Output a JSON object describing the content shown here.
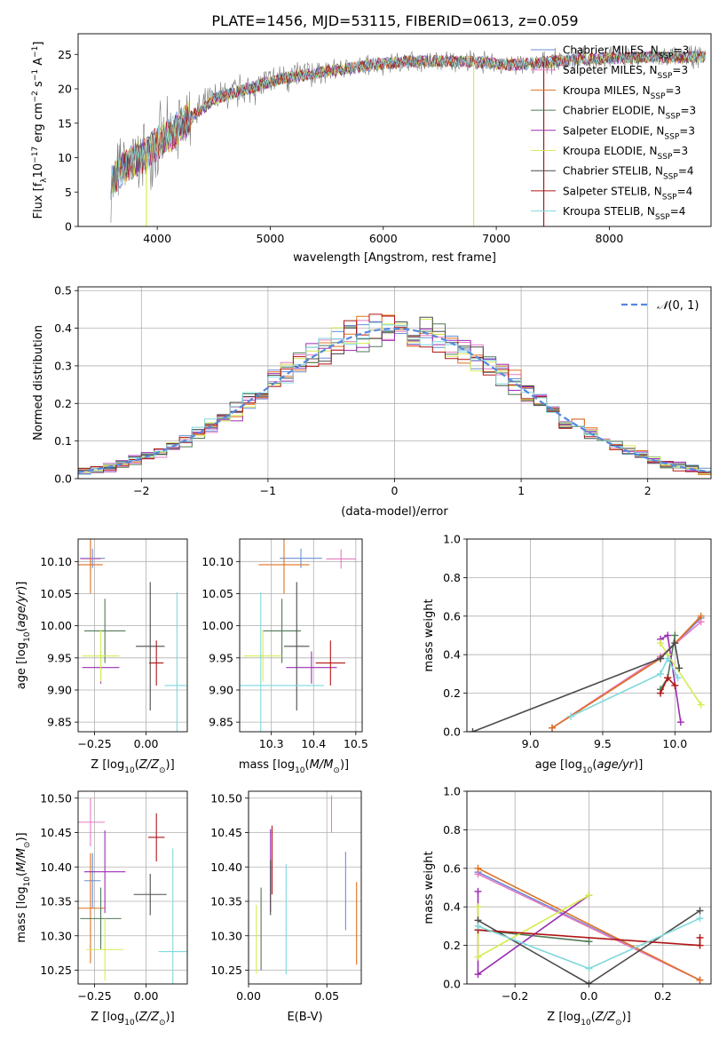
{
  "figure_title": "PLATE=1456, MJD=53115, FIBERID=0613, z=0.059",
  "colors": {
    "Chabrier MILES": "#6a8fd6",
    "Salpeter MILES": "#e87ac4",
    "Kroupa MILES": "#e0701f",
    "Chabrier ELODIE": "#4f7a57",
    "Salpeter ELODIE": "#9b2db3",
    "Kroupa ELODIE": "#d6ec52",
    "Chabrier STELIB": "#4b4b4b",
    "Salpeter STELIB": "#b01515",
    "Kroupa STELIB": "#7fd8dc",
    "data": "#808080",
    "normal": "#5588dd"
  },
  "chart_data": [
    {
      "id": "spectrum",
      "type": "line",
      "xlabel": "wavelength [Angstrom, rest frame]",
      "ylabel": "Flux [f_λ 10^-17 erg cm^-2 s^-1 A^-1]",
      "xlim": [
        3300,
        8900
      ],
      "ylim": [
        0,
        28
      ],
      "xticks": [
        4000,
        5000,
        6000,
        7000,
        8000
      ],
      "yticks": [
        0,
        5,
        10,
        15,
        20,
        25
      ],
      "grid": false,
      "legend_position": "right",
      "legend": [
        {
          "label": "Chabrier MILES, N",
          "sub": "SSP",
          "tail": "=3"
        },
        {
          "label": "Salpeter MILES, N",
          "sub": "SSP",
          "tail": "=3"
        },
        {
          "label": "Kroupa MILES, N",
          "sub": "SSP",
          "tail": "=3"
        },
        {
          "label": "Chabrier ELODIE, N",
          "sub": "SSP",
          "tail": "=3"
        },
        {
          "label": "Salpeter ELODIE, N",
          "sub": "SSP",
          "tail": "=3"
        },
        {
          "label": "Kroupa ELODIE, N",
          "sub": "SSP",
          "tail": "=3"
        },
        {
          "label": "Chabrier STELIB, N",
          "sub": "SSP",
          "tail": "=4"
        },
        {
          "label": "Salpeter STELIB, N",
          "sub": "SSP",
          "tail": "=4"
        },
        {
          "label": "Kroupa STELIB, N",
          "sub": "SSP",
          "tail": "=4"
        }
      ],
      "series": [
        {
          "name": "data",
          "x": [
            3600,
            3700,
            3800,
            3900,
            4000,
            4100,
            4200,
            4300,
            4400,
            4500,
            4700,
            4900,
            5100,
            5300,
            5500,
            5700,
            5900,
            6100,
            6300,
            6500,
            6700,
            6900,
            7100,
            7300,
            7500,
            7700,
            7900,
            8100,
            8300,
            8500,
            8700,
            8850
          ],
          "y": [
            6.5,
            8.5,
            9.5,
            10.5,
            12.0,
            13.0,
            14.5,
            16.0,
            17.0,
            18.5,
            19.5,
            20.5,
            21.5,
            22.0,
            22.5,
            23.0,
            23.5,
            23.8,
            24.0,
            24.0,
            24.0,
            23.8,
            23.5,
            23.6,
            24.0,
            24.2,
            24.4,
            24.5,
            24.6,
            24.6,
            24.6,
            24.6
          ]
        }
      ],
      "spikes": [
        {
          "x": 3905,
          "y": 0
        },
        {
          "x": 6800,
          "y": 0
        },
        {
          "x": 7420,
          "y": 0
        }
      ]
    },
    {
      "id": "residuals",
      "type": "histogram",
      "xlabel": "(data-model)/error",
      "ylabel": "Normed distribution",
      "xlim": [
        -2.5,
        2.5
      ],
      "ylim": [
        0,
        0.51
      ],
      "xticks": [
        -2,
        -1,
        0,
        1,
        2
      ],
      "yticks": [
        0.0,
        0.1,
        0.2,
        0.3,
        0.4,
        0.5
      ],
      "grid": true,
      "legend_position": "top-right",
      "legend": [
        "N(0,1)"
      ],
      "bin_width": 0.1,
      "bin_start": -2.5,
      "normal": {
        "mean": 0,
        "sigma": 1
      }
    },
    {
      "id": "age_vs_Z",
      "type": "errorbar",
      "xlabel": "Z [log10(Z/Z☉)]",
      "ylabel": "age [log10(age/yr)]",
      "xlim": [
        -0.33,
        0.2
      ],
      "ylim": [
        9.835,
        10.135
      ],
      "xticks": [
        -0.25,
        0.0
      ],
      "yticks": [
        9.85,
        9.9,
        9.95,
        10.0,
        10.05,
        10.1
      ],
      "grid": true,
      "points": [
        {
          "model": "Chabrier MILES",
          "x": -0.26,
          "xerr": 0.06,
          "y": 10.105,
          "yerr": 0.015
        },
        {
          "model": "Salpeter MILES",
          "x": -0.27,
          "xerr": 0.05,
          "y": 10.104,
          "yerr": 0.015
        },
        {
          "model": "Kroupa MILES",
          "x": -0.27,
          "xerr": 0.06,
          "y": 10.095,
          "yerr": 0.045
        },
        {
          "model": "Chabrier ELODIE",
          "x": -0.2,
          "xerr": 0.1,
          "y": 9.992,
          "yerr": 0.05
        },
        {
          "model": "Salpeter ELODIE",
          "x": -0.22,
          "xerr": 0.09,
          "y": 9.935,
          "yerr": 0.025
        },
        {
          "model": "Kroupa ELODIE",
          "x": -0.22,
          "xerr": 0.09,
          "y": 9.953,
          "yerr": 0.04
        },
        {
          "model": "Chabrier STELIB",
          "x": 0.02,
          "xerr": 0.07,
          "y": 9.968,
          "yerr": 0.1
        },
        {
          "model": "Salpeter STELIB",
          "x": 0.05,
          "xerr": 0.035,
          "y": 9.942,
          "yerr": 0.035
        },
        {
          "model": "Kroupa STELIB",
          "x": 0.15,
          "xerr": 0.06,
          "y": 9.907,
          "yerr": 0.145
        }
      ]
    },
    {
      "id": "age_vs_mass",
      "type": "errorbar",
      "xlabel": "mass [log10(M/M☉)]",
      "ylabel": "",
      "xlim": [
        10.225,
        10.515
      ],
      "ylim": [
        9.835,
        10.135
      ],
      "xticks": [
        10.3,
        10.4,
        10.5
      ],
      "yticks": [
        9.85,
        9.9,
        9.95,
        10.0,
        10.05,
        10.1
      ],
      "grid": true,
      "points": [
        {
          "model": "Chabrier MILES",
          "x": 10.37,
          "xerr": 0.05,
          "y": 10.105,
          "yerr": 0.015
        },
        {
          "model": "Salpeter MILES",
          "x": 10.465,
          "xerr": 0.035,
          "y": 10.104,
          "yerr": 0.015
        },
        {
          "model": "Kroupa MILES",
          "x": 10.33,
          "xerr": 0.06,
          "y": 10.095,
          "yerr": 0.045
        },
        {
          "model": "Chabrier ELODIE",
          "x": 10.325,
          "xerr": 0.045,
          "y": 9.992,
          "yerr": 0.05
        },
        {
          "model": "Salpeter ELODIE",
          "x": 10.395,
          "xerr": 0.06,
          "y": 9.935,
          "yerr": 0.025
        },
        {
          "model": "Kroupa ELODIE",
          "x": 10.28,
          "xerr": 0.045,
          "y": 9.953,
          "yerr": 0.04
        },
        {
          "model": "Chabrier STELIB",
          "x": 10.36,
          "xerr": 0.03,
          "y": 9.968,
          "yerr": 0.1
        },
        {
          "model": "Salpeter STELIB",
          "x": 10.44,
          "xerr": 0.035,
          "y": 9.942,
          "yerr": 0.035
        },
        {
          "model": "Kroupa STELIB",
          "x": 10.275,
          "xerr": 0.15,
          "y": 9.907,
          "yerr": 0.145
        }
      ]
    },
    {
      "id": "weights_vs_age",
      "type": "line",
      "xlabel": "age [log10(age/yr)]",
      "ylabel": "mass weight",
      "xlim": [
        8.56,
        10.25
      ],
      "ylim": [
        0,
        1
      ],
      "xticks": [
        9.0,
        9.5,
        10.0
      ],
      "yticks": [
        0.0,
        0.2,
        0.4,
        0.6,
        0.8,
        1.0
      ],
      "grid": true,
      "series": [
        {
          "model": "Chabrier MILES",
          "x": [
            9.15,
            9.9,
            10.18
          ],
          "y": [
            0.02,
            0.38,
            0.59
          ]
        },
        {
          "model": "Salpeter MILES",
          "x": [
            9.15,
            9.9,
            10.18
          ],
          "y": [
            0.02,
            0.39,
            0.57
          ]
        },
        {
          "model": "Kroupa MILES",
          "x": [
            9.15,
            9.9,
            10.18
          ],
          "y": [
            0.02,
            0.38,
            0.6
          ]
        },
        {
          "model": "Chabrier ELODIE",
          "x": [
            9.9,
            9.95,
            10.0
          ],
          "y": [
            0.22,
            0.28,
            0.5
          ]
        },
        {
          "model": "Salpeter ELODIE",
          "x": [
            9.9,
            9.95,
            10.04
          ],
          "y": [
            0.48,
            0.5,
            0.05
          ]
        },
        {
          "model": "Kroupa ELODIE",
          "x": [
            9.9,
            9.95,
            10.18
          ],
          "y": [
            0.46,
            0.4,
            0.14
          ]
        },
        {
          "model": "Chabrier STELIB",
          "x": [
            8.6,
            9.9,
            10.0,
            10.03
          ],
          "y": [
            0.0,
            0.38,
            0.46,
            0.33
          ]
        },
        {
          "model": "Salpeter STELIB",
          "x": [
            9.9,
            9.95,
            10.0
          ],
          "y": [
            0.2,
            0.28,
            0.24
          ]
        },
        {
          "model": "Kroupa STELIB",
          "x": [
            9.28,
            9.9,
            9.95,
            10.02
          ],
          "y": [
            0.08,
            0.3,
            0.38,
            0.28
          ]
        }
      ]
    },
    {
      "id": "mass_vs_Z",
      "type": "errorbar",
      "xlabel": "Z [log10(Z/Z☉)]",
      "ylabel": "mass [log10(M/M☉)]",
      "xlim": [
        -0.33,
        0.2
      ],
      "ylim": [
        10.23,
        10.51
      ],
      "xticks": [
        -0.25,
        0.0
      ],
      "yticks": [
        10.25,
        10.3,
        10.35,
        10.4,
        10.45,
        10.5
      ],
      "grid": true,
      "points": [
        {
          "model": "Chabrier MILES",
          "x": -0.26,
          "xerr": 0.04,
          "y": 10.38,
          "yerr": 0.04
        },
        {
          "model": "Salpeter MILES",
          "x": -0.27,
          "xerr": 0.07,
          "y": 10.465,
          "yerr": 0.035
        },
        {
          "model": "Kroupa MILES",
          "x": -0.27,
          "xerr": 0.07,
          "y": 10.34,
          "yerr": 0.08
        },
        {
          "model": "Chabrier ELODIE",
          "x": -0.22,
          "xerr": 0.1,
          "y": 10.325,
          "yerr": 0.045
        },
        {
          "model": "Salpeter ELODIE",
          "x": -0.2,
          "xerr": 0.1,
          "y": 10.393,
          "yerr": 0.06
        },
        {
          "model": "Kroupa ELODIE",
          "x": -0.2,
          "xerr": 0.09,
          "y": 10.28,
          "yerr": 0.045
        },
        {
          "model": "Chabrier STELIB",
          "x": 0.02,
          "xerr": 0.08,
          "y": 10.36,
          "yerr": 0.03
        },
        {
          "model": "Salpeter STELIB",
          "x": 0.05,
          "xerr": 0.04,
          "y": 10.443,
          "yerr": 0.035
        },
        {
          "model": "Kroupa STELIB",
          "x": 0.13,
          "xerr": 0.07,
          "y": 10.277,
          "yerr": 0.15
        }
      ]
    },
    {
      "id": "mass_vs_ebv",
      "type": "errorbar",
      "xlabel": "E(B-V)",
      "ylabel": "",
      "xlim": [
        0.0,
        0.072
      ],
      "ylim": [
        10.23,
        10.51
      ],
      "xticks": [
        0.0,
        0.05
      ],
      "yticks": [
        10.25,
        10.3,
        10.35,
        10.4,
        10.45,
        10.5
      ],
      "grid": true,
      "points": [
        {
          "model": "Chabrier MILES",
          "x": 0.062,
          "xerr": 0,
          "y": 10.365,
          "yerr": 0.057
        },
        {
          "model": "Salpeter MILES",
          "x": 0.053,
          "xerr": 0,
          "y": 10.477,
          "yerr": 0.027
        },
        {
          "model": "Kroupa MILES",
          "x": 0.069,
          "xerr": 0,
          "y": 10.318,
          "yerr": 0.06
        },
        {
          "model": "Chabrier ELODIE",
          "x": 0.008,
          "xerr": 0,
          "y": 10.31,
          "yerr": 0.06
        },
        {
          "model": "Salpeter ELODIE",
          "x": 0.014,
          "xerr": 0,
          "y": 10.395,
          "yerr": 0.06
        },
        {
          "model": "Kroupa ELODIE",
          "x": 0.005,
          "xerr": 0,
          "y": 10.295,
          "yerr": 0.05
        },
        {
          "model": "Chabrier STELIB",
          "x": 0.014,
          "xerr": 0,
          "y": 10.37,
          "yerr": 0.04
        },
        {
          "model": "Salpeter STELIB",
          "x": 0.015,
          "xerr": 0,
          "y": 10.41,
          "yerr": 0.05
        },
        {
          "model": "Kroupa STELIB",
          "x": 0.024,
          "xerr": 0,
          "y": 10.324,
          "yerr": 0.08
        }
      ]
    },
    {
      "id": "weights_vs_Z",
      "type": "line",
      "xlabel": "Z [log10(Z/Z☉)]",
      "ylabel": "mass weight",
      "xlim": [
        -0.33,
        0.33
      ],
      "ylim": [
        0,
        1
      ],
      "xticks": [
        -0.2,
        0.0,
        0.2
      ],
      "yticks": [
        0.0,
        0.2,
        0.4,
        0.6,
        0.8,
        1.0
      ],
      "grid": true,
      "series": [
        {
          "model": "Chabrier MILES",
          "x": [
            -0.3,
            0.3
          ],
          "y": [
            0.58,
            0.02
          ]
        },
        {
          "model": "Salpeter MILES",
          "x": [
            -0.3,
            0.3
          ],
          "y": [
            0.57,
            0.02
          ]
        },
        {
          "model": "Kroupa MILES",
          "x": [
            -0.3,
            0.3
          ],
          "y": [
            0.6,
            0.02
          ]
        },
        {
          "model": "Chabrier ELODIE",
          "x": [
            -0.3,
            0.0
          ],
          "y": [
            0.28,
            0.22
          ]
        },
        {
          "model": "Salpeter ELODIE",
          "x": [
            -0.3,
            -0.3,
            0.0
          ],
          "y": [
            0.48,
            0.05,
            0.46
          ]
        },
        {
          "model": "Kroupa ELODIE",
          "x": [
            -0.3,
            -0.3,
            0.0
          ],
          "y": [
            0.4,
            0.14,
            0.46
          ]
        },
        {
          "model": "Chabrier STELIB",
          "x": [
            -0.3,
            0.0,
            0.3
          ],
          "y": [
            0.33,
            0.0,
            0.38
          ]
        },
        {
          "model": "Salpeter STELIB",
          "x": [
            -0.3,
            0.3,
            0.3
          ],
          "y": [
            0.28,
            0.2,
            0.24
          ]
        },
        {
          "model": "Kroupa STELIB",
          "x": [
            -0.3,
            0.0,
            0.3
          ],
          "y": [
            0.3,
            0.08,
            0.34
          ]
        }
      ]
    }
  ]
}
